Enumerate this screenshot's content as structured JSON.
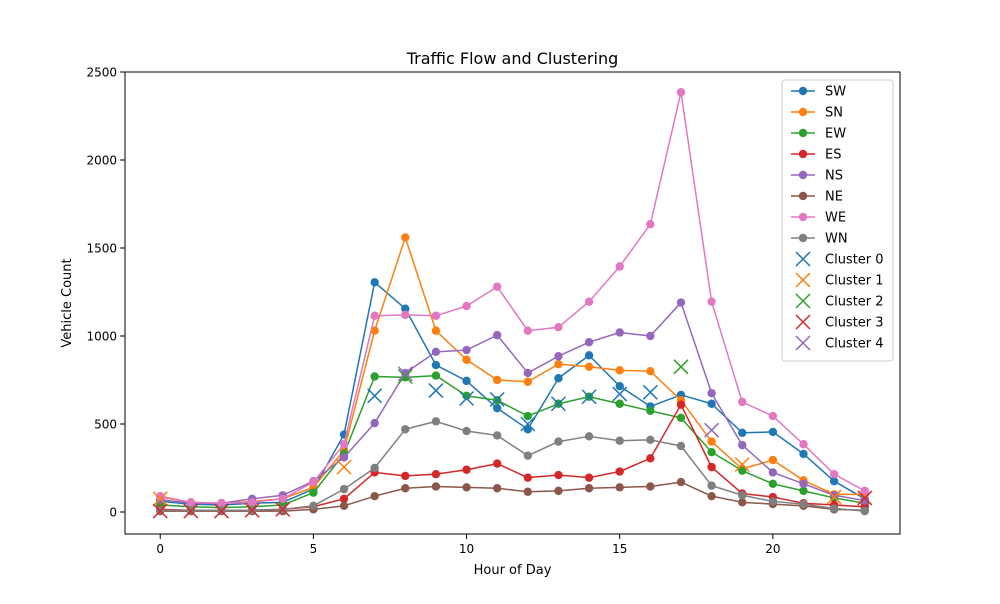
{
  "chart_data": {
    "type": "line",
    "title": "Traffic Flow and Clustering",
    "xlabel": "Hour of Day",
    "ylabel": "Vehicle Count",
    "xlim": [
      -1.15,
      24.15
    ],
    "ylim": [
      -125,
      2500
    ],
    "xticks": [
      0,
      5,
      10,
      15,
      20
    ],
    "yticks": [
      0,
      500,
      1000,
      1500,
      2000,
      2500
    ],
    "grid": false,
    "legend_position": "top-right",
    "x": [
      0,
      1,
      2,
      3,
      4,
      5,
      6,
      7,
      8,
      9,
      10,
      11,
      12,
      13,
      14,
      15,
      16,
      17,
      18,
      19,
      20,
      21,
      22,
      23
    ],
    "series": [
      {
        "name": "SW",
        "color": "#1f77b4",
        "values": [
          60,
          45,
          40,
          50,
          55,
          130,
          440,
          1305,
          1155,
          835,
          745,
          590,
          470,
          760,
          890,
          715,
          600,
          665,
          615,
          450,
          455,
          330,
          175,
          75
        ]
      },
      {
        "name": "SN",
        "color": "#ff7f0e",
        "values": [
          85,
          55,
          50,
          60,
          75,
          140,
          350,
          1030,
          1560,
          1030,
          865,
          750,
          740,
          840,
          825,
          805,
          800,
          635,
          400,
          245,
          295,
          180,
          100,
          100
        ]
      },
      {
        "name": "EW",
        "color": "#2ca02c",
        "values": [
          40,
          30,
          25,
          30,
          40,
          110,
          330,
          770,
          765,
          775,
          660,
          635,
          545,
          615,
          655,
          615,
          575,
          535,
          340,
          235,
          160,
          120,
          80,
          50
        ]
      },
      {
        "name": "ES",
        "color": "#d62728",
        "values": [
          15,
          10,
          10,
          10,
          15,
          30,
          75,
          225,
          205,
          215,
          240,
          275,
          195,
          210,
          195,
          230,
          305,
          610,
          255,
          105,
          85,
          50,
          40,
          30
        ]
      },
      {
        "name": "NS",
        "color": "#9467bd",
        "values": [
          70,
          50,
          50,
          75,
          95,
          175,
          310,
          505,
          790,
          910,
          920,
          1005,
          790,
          885,
          965,
          1020,
          1000,
          1190,
          675,
          380,
          225,
          160,
          95,
          65
        ]
      },
      {
        "name": "NE",
        "color": "#8c564b",
        "values": [
          5,
          5,
          5,
          5,
          5,
          15,
          35,
          90,
          135,
          145,
          140,
          135,
          115,
          120,
          135,
          140,
          145,
          170,
          90,
          55,
          45,
          35,
          15,
          10
        ]
      },
      {
        "name": "WE",
        "color": "#e377c2",
        "values": [
          90,
          55,
          50,
          55,
          75,
          170,
          385,
          1115,
          1120,
          1115,
          1170,
          1280,
          1030,
          1050,
          1195,
          1395,
          1635,
          2385,
          1195,
          625,
          545,
          385,
          215,
          120
        ]
      },
      {
        "name": "WN",
        "color": "#7f7f7f",
        "values": [
          10,
          10,
          10,
          10,
          15,
          35,
          130,
          250,
          470,
          515,
          460,
          435,
          320,
          400,
          430,
          405,
          410,
          375,
          150,
          95,
          60,
          45,
          20,
          5
        ]
      }
    ],
    "clusters": [
      {
        "name": "Cluster 0",
        "color": "#1f77b4",
        "points": [
          {
            "x": 7,
            "y": 660
          },
          {
            "x": 9,
            "y": 690
          },
          {
            "x": 10,
            "y": 645
          },
          {
            "x": 11,
            "y": 640
          },
          {
            "x": 12,
            "y": 500
          },
          {
            "x": 13,
            "y": 615
          },
          {
            "x": 14,
            "y": 655
          },
          {
            "x": 15,
            "y": 670
          },
          {
            "x": 16,
            "y": 680
          }
        ]
      },
      {
        "name": "Cluster 1",
        "color": "#ff7f0e",
        "points": [
          {
            "x": 0,
            "y": 75
          },
          {
            "x": 6,
            "y": 255
          },
          {
            "x": 19,
            "y": 270
          },
          {
            "x": 22,
            "y": 85
          }
        ]
      },
      {
        "name": "Cluster 2",
        "color": "#2ca02c",
        "points": [
          {
            "x": 8,
            "y": 770
          },
          {
            "x": 17,
            "y": 825
          }
        ]
      },
      {
        "name": "Cluster 3",
        "color": "#d62728",
        "points": [
          {
            "x": 0,
            "y": 5
          },
          {
            "x": 1,
            "y": 5
          },
          {
            "x": 2,
            "y": 5
          },
          {
            "x": 3,
            "y": 10
          },
          {
            "x": 4,
            "y": 15
          },
          {
            "x": 23,
            "y": 80
          }
        ]
      },
      {
        "name": "Cluster 4",
        "color": "#9467bd",
        "points": [
          {
            "x": 8,
            "y": 785
          },
          {
            "x": 18,
            "y": 465
          }
        ]
      }
    ]
  }
}
